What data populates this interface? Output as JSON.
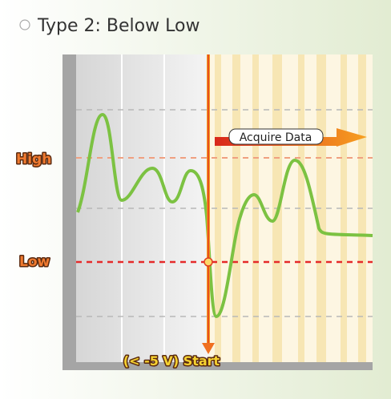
{
  "title": "Type 2: Below Low",
  "levels": {
    "high": "High",
    "low": "Low"
  },
  "arrow_label": "Acquire Data",
  "start_label": "(< -5 V) Start"
}
